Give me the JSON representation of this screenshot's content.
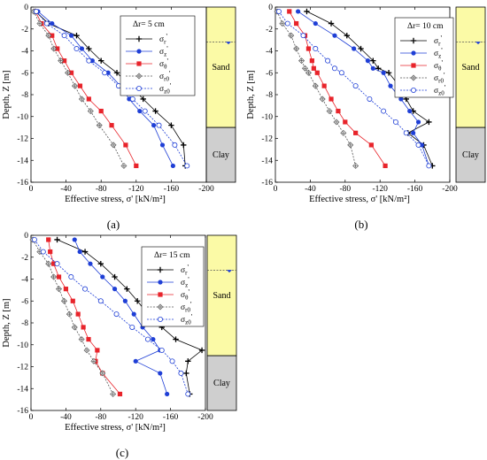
{
  "figure": {
    "panel_labels": [
      "(a)",
      "(b)",
      "(c)"
    ]
  },
  "chart_data": [
    {
      "type": "line",
      "panel_label": "(a)",
      "legend_title": "Δr= 5 cm",
      "xlabel": "Effective stress, σ' [kN/m²]",
      "ylabel": "Depth, Z [m]",
      "xlim": [
        0,
        -200
      ],
      "ylim": [
        0,
        -16
      ],
      "xticks": [
        0,
        -40,
        -80,
        -120,
        -160,
        -200
      ],
      "xtick_labels": [
        "0",
        "-40",
        "-80",
        "-120",
        "-160",
        "-200"
      ],
      "yticks": [
        0,
        -2,
        -4,
        -6,
        -8,
        -10,
        -12,
        -14,
        -16
      ],
      "ytick_labels": [
        "0",
        "-2",
        "-4",
        "-6",
        "-8",
        "-10",
        "-12",
        "-14",
        "-16"
      ],
      "legend_position": "top-right",
      "soil_column": [
        {
          "name": "Sand",
          "top": 0,
          "bottom": -11,
          "color": "#fbfaa6"
        },
        {
          "name": "Clay",
          "top": -11,
          "bottom": -16,
          "color": "#cfcfcf"
        }
      ],
      "water_table": -3.2,
      "series": [
        {
          "name": "σr'",
          "marker": "plus",
          "color": "#000000",
          "dashed": false,
          "x": [
            -5,
            -20,
            -52,
            -66,
            -80,
            -98,
            -114,
            -128,
            -142,
            -160,
            -174,
            -176
          ],
          "y": [
            -0.4,
            -1.5,
            -2.6,
            -3.8,
            -4.9,
            -6.0,
            -7.2,
            -8.4,
            -9.5,
            -10.8,
            -12.6,
            -14.5
          ]
        },
        {
          "name": "σz'",
          "marker": "circle-filled",
          "color": "#1f3fd6",
          "dashed": false,
          "x": [
            -8,
            -24,
            -46,
            -58,
            -70,
            -88,
            -102,
            -112,
            -124,
            -140,
            -150,
            -162
          ],
          "y": [
            -0.4,
            -1.5,
            -2.6,
            -3.8,
            -4.9,
            -6.0,
            -7.2,
            -8.4,
            -9.5,
            -10.8,
            -12.6,
            -14.5
          ]
        },
        {
          "name": "σθ'",
          "marker": "square-filled",
          "color": "#e8242b",
          "dashed": false,
          "x": [
            -5,
            -12,
            -24,
            -30,
            -38,
            -46,
            -56,
            -66,
            -80,
            -92,
            -108,
            -120
          ],
          "y": [
            -0.4,
            -1.5,
            -2.6,
            -3.8,
            -4.9,
            -6.0,
            -7.2,
            -8.4,
            -9.5,
            -10.8,
            -12.6,
            -14.5
          ]
        },
        {
          "name": "σr0'",
          "marker": "diamond-open",
          "color": "#555555",
          "dashed": true,
          "x": [
            -3,
            -10,
            -20,
            -26,
            -34,
            -42,
            -50,
            -58,
            -68,
            -78,
            -94,
            -106
          ],
          "y": [
            -0.4,
            -1.5,
            -2.6,
            -3.8,
            -4.9,
            -6.0,
            -7.2,
            -8.4,
            -9.5,
            -10.8,
            -12.6,
            -14.5
          ]
        },
        {
          "name": "σz0'",
          "marker": "circle-open",
          "color": "#1f3fd6",
          "dashed": true,
          "x": [
            -6,
            -18,
            -38,
            -52,
            -66,
            -84,
            -100,
            -116,
            -130,
            -146,
            -164,
            -178
          ],
          "y": [
            -0.4,
            -1.5,
            -2.6,
            -3.8,
            -4.9,
            -6.0,
            -7.2,
            -8.4,
            -9.5,
            -10.8,
            -12.6,
            -14.5
          ]
        }
      ]
    },
    {
      "type": "line",
      "panel_label": "(b)",
      "legend_title": "Δr= 10 cm",
      "xlabel": "Effective stress, σ' [kN/m²]",
      "ylabel": "Depth, Z [m]",
      "xlim": [
        0,
        -200
      ],
      "ylim": [
        0,
        -16
      ],
      "xticks": [
        0,
        -40,
        -80,
        -120,
        -160,
        -200
      ],
      "xtick_labels": [
        "0",
        "-40",
        "-80",
        "-120",
        "-160",
        "-200"
      ],
      "yticks": [
        0,
        -2,
        -4,
        -6,
        -8,
        -10,
        -12,
        -14,
        -16
      ],
      "ytick_labels": [
        "0",
        "-2",
        "-4",
        "-6",
        "-8",
        "-10",
        "-12",
        "-14",
        "-16"
      ],
      "legend_position": "top-right",
      "soil_column": [
        {
          "name": "Sand",
          "top": 0,
          "bottom": -11,
          "color": "#fbfaa6"
        },
        {
          "name": "Clay",
          "top": -11,
          "bottom": -16,
          "color": "#cfcfcf"
        }
      ],
      "water_table": -3.2,
      "series": [
        {
          "name": "σr'",
          "marker": "plus",
          "color": "#000000",
          "dashed": false,
          "x": [
            -36,
            -64,
            -82,
            -98,
            -112,
            -118,
            -130,
            -142,
            -150,
            -158,
            -176,
            -152,
            -170,
            -180
          ],
          "y": [
            -0.4,
            -1.5,
            -2.6,
            -3.8,
            -4.9,
            -5.6,
            -6.0,
            -7.2,
            -8.4,
            -9.5,
            -10.5,
            -11.5,
            -12.6,
            -14.5
          ]
        },
        {
          "name": "σz'",
          "marker": "circle-filled",
          "color": "#1f3fd6",
          "dashed": false,
          "x": [
            -26,
            -46,
            -68,
            -90,
            -106,
            -112,
            -124,
            -132,
            -144,
            -154,
            -164,
            -158,
            -168,
            -176
          ],
          "y": [
            -0.4,
            -1.5,
            -2.6,
            -3.8,
            -4.9,
            -5.6,
            -6.0,
            -7.2,
            -8.4,
            -9.5,
            -10.5,
            -11.5,
            -12.6,
            -14.5
          ]
        },
        {
          "name": "σθ'",
          "marker": "square-filled",
          "color": "#e8242b",
          "dashed": false,
          "x": [
            -16,
            -24,
            -34,
            -38,
            -42,
            -44,
            -48,
            -56,
            -64,
            -72,
            -80,
            -92,
            -110,
            -126
          ],
          "y": [
            -0.4,
            -1.5,
            -2.6,
            -3.8,
            -4.9,
            -5.6,
            -6.0,
            -7.2,
            -8.4,
            -9.5,
            -10.5,
            -11.5,
            -12.6,
            -14.5
          ]
        },
        {
          "name": "σr0'",
          "marker": "diamond-open",
          "color": "#555555",
          "dashed": true,
          "x": [
            -2,
            -8,
            -18,
            -24,
            -30,
            -34,
            -38,
            -46,
            -54,
            -62,
            -70,
            -78,
            -86,
            -92
          ],
          "y": [
            -0.4,
            -1.5,
            -2.6,
            -3.8,
            -4.9,
            -5.6,
            -6.0,
            -7.2,
            -8.4,
            -9.5,
            -10.5,
            -11.5,
            -12.6,
            -14.5
          ]
        },
        {
          "name": "σz0'",
          "marker": "circle-open",
          "color": "#1f3fd6",
          "dashed": true,
          "x": [
            -4,
            -14,
            -32,
            -46,
            -60,
            -68,
            -76,
            -92,
            -108,
            -124,
            -138,
            -150,
            -164,
            -176
          ],
          "y": [
            -0.4,
            -1.5,
            -2.6,
            -3.8,
            -4.9,
            -5.6,
            -6.0,
            -7.2,
            -8.4,
            -9.5,
            -10.5,
            -11.5,
            -12.6,
            -14.5
          ]
        }
      ]
    },
    {
      "type": "line",
      "panel_label": "(c)",
      "legend_title": "Δr= 15 cm",
      "xlabel": "Effective stress, σ' [kN/m²]",
      "ylabel": "Depth, Z [m]",
      "xlim": [
        0,
        -200
      ],
      "ylim": [
        0,
        -16
      ],
      "xticks": [
        0,
        -40,
        -80,
        -120,
        -160,
        -200
      ],
      "xtick_labels": [
        "0",
        "-40",
        "-80",
        "-120",
        "-160",
        "-200"
      ],
      "yticks": [
        0,
        -2,
        -4,
        -6,
        -8,
        -10,
        -12,
        -14,
        -16
      ],
      "ytick_labels": [
        "0",
        "-2",
        "-4",
        "-6",
        "-8",
        "-10",
        "-12",
        "-14",
        "-16"
      ],
      "legend_position": "top-right",
      "soil_column": [
        {
          "name": "Sand",
          "top": 0,
          "bottom": -11,
          "color": "#fbfaa6"
        },
        {
          "name": "Clay",
          "top": -11,
          "bottom": -16,
          "color": "#cfcfcf"
        }
      ],
      "water_table": -3.2,
      "series": [
        {
          "name": "σr'",
          "marker": "plus",
          "color": "#000000",
          "dashed": false,
          "x": [
            -30,
            -62,
            -80,
            -96,
            -110,
            -122,
            -134,
            -150,
            -166,
            -196,
            -180,
            -178,
            -182
          ],
          "y": [
            -0.4,
            -1.5,
            -2.6,
            -3.8,
            -4.9,
            -6.0,
            -7.2,
            -8.4,
            -9.5,
            -10.5,
            -11.5,
            -12.6,
            -14.5
          ]
        },
        {
          "name": "σz'",
          "marker": "circle-filled",
          "color": "#1f3fd6",
          "dashed": false,
          "x": [
            -50,
            -56,
            -68,
            -82,
            -96,
            -108,
            -118,
            -128,
            -140,
            -148,
            -120,
            -148,
            -156
          ],
          "y": [
            -0.4,
            -1.5,
            -2.6,
            -3.8,
            -4.9,
            -6.0,
            -7.2,
            -8.4,
            -9.5,
            -10.5,
            -11.5,
            -12.6,
            -14.5
          ]
        },
        {
          "name": "σθ'",
          "marker": "square-filled",
          "color": "#e8242b",
          "dashed": false,
          "x": [
            -20,
            -22,
            -26,
            -32,
            -40,
            -48,
            -54,
            -60,
            -66,
            -76,
            -74,
            -82,
            -102
          ],
          "y": [
            -0.4,
            -1.5,
            -2.6,
            -3.8,
            -4.9,
            -6.0,
            -7.2,
            -8.4,
            -9.5,
            -10.5,
            -11.5,
            -12.6,
            -14.5
          ]
        },
        {
          "name": "σr0'",
          "marker": "diamond-open",
          "color": "#555555",
          "dashed": true,
          "x": [
            -2,
            -10,
            -20,
            -26,
            -32,
            -38,
            -44,
            -50,
            -58,
            -64,
            -72,
            -82,
            -94
          ],
          "y": [
            -0.4,
            -1.5,
            -2.6,
            -3.8,
            -4.9,
            -6.0,
            -7.2,
            -8.4,
            -9.5,
            -10.5,
            -11.5,
            -12.6,
            -14.5
          ]
        },
        {
          "name": "σz0'",
          "marker": "circle-open",
          "color": "#1f3fd6",
          "dashed": true,
          "x": [
            -4,
            -14,
            -30,
            -46,
            -62,
            -80,
            -98,
            -116,
            -134,
            -150,
            -162,
            -172,
            -180
          ],
          "y": [
            -0.4,
            -1.5,
            -2.6,
            -3.8,
            -4.9,
            -6.0,
            -7.2,
            -8.4,
            -9.5,
            -10.5,
            -11.5,
            -12.6,
            -14.5
          ]
        }
      ]
    }
  ]
}
